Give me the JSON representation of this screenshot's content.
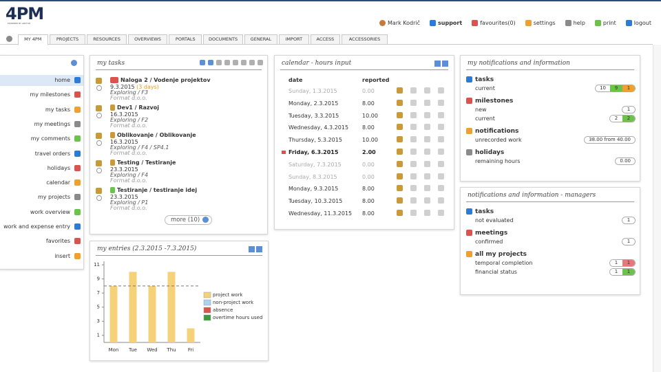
{
  "header": {
    "logo": "4PM",
    "logo_tagline": "POWERED BY ARCTUR",
    "user": "Mark Kodrič",
    "links": [
      "support",
      "favourites(0)",
      "settings",
      "help",
      "print",
      "logout"
    ]
  },
  "tabs": [
    "MY 4PM",
    "PROJECTS",
    "RESOURCES",
    "OVERVIEWS",
    "PORTALS",
    "DOCUMENTS",
    "GENERAL",
    "IMPORT",
    "ACCESS",
    "ACCESSORIES"
  ],
  "active_tab": 0,
  "sidebar": {
    "items": [
      "home",
      "my milestones",
      "my tasks",
      "my meetings",
      "my comments",
      "travel orders",
      "holidays",
      "calendar",
      "my projects",
      "work overview",
      "work and expense entry",
      "favorites",
      "insert"
    ],
    "active": 0
  },
  "my_tasks": {
    "title": "my tasks",
    "items": [
      {
        "title": "Naloga 2 / Vodenje projektov",
        "date": "9.3.2015",
        "late": "(3 days)",
        "path": "Exploring / F3",
        "company": "Format d.o.o."
      },
      {
        "title": "Dev1 / Razvoj",
        "date": "16.3.2015",
        "path": "Exploring / F2",
        "company": "Format d.o.o."
      },
      {
        "title": "Oblikovanje / Oblikovanje",
        "date": "16.3.2015",
        "path": "Exploring / F4 / SP4.1",
        "company": "Format d.o.o."
      },
      {
        "title": "Testing / Testiranje",
        "date": "23.3.2015",
        "path": "Exploring / F4",
        "company": "Format d.o.o."
      },
      {
        "title": "Testiranje / testiranje idej",
        "date": "23.3.2015",
        "path": "Exploring / P1",
        "company": "Format d.o.o."
      }
    ],
    "more": "more (10)"
  },
  "calendar": {
    "title": "calendar - hours input",
    "columns": [
      "date",
      "reported"
    ],
    "rows": [
      {
        "date": "Sunday, 1.3.2015",
        "reported": "0.00",
        "weekend": true
      },
      {
        "date": "Monday, 2.3.2015",
        "reported": "8.00"
      },
      {
        "date": "Tuesday, 3.3.2015",
        "reported": "10.00"
      },
      {
        "date": "Wednesday, 4.3.2015",
        "reported": "8.00"
      },
      {
        "date": "Thursday, 5.3.2015",
        "reported": "10.00"
      },
      {
        "date": "Friday, 6.3.2015",
        "reported": "2.00",
        "today": true
      },
      {
        "date": "Saturday, 7.3.2015",
        "reported": "0.00",
        "weekend": true
      },
      {
        "date": "Sunday, 8.3.2015",
        "reported": "0.00",
        "weekend": true
      },
      {
        "date": "Monday, 9.3.2015",
        "reported": "8.00"
      },
      {
        "date": "Tuesday, 10.3.2015",
        "reported": "8.00"
      },
      {
        "date": "Wednesday, 11.3.2015",
        "reported": "8.00"
      }
    ]
  },
  "my_entries": {
    "title": "my entries",
    "period": "(2.3.2015 -7.3.2015)",
    "chart_data": {
      "type": "bar",
      "stacked": true,
      "categories": [
        "Mon",
        "Tue",
        "Wed",
        "Thu",
        "Fri"
      ],
      "series": [
        {
          "name": "project work",
          "color": "#f5d27a",
          "values": [
            8,
            10,
            8,
            10,
            2
          ]
        },
        {
          "name": "non-project work",
          "color": "#a9d3f0",
          "values": [
            0,
            0,
            0,
            0,
            0
          ]
        },
        {
          "name": "absence",
          "color": "#d9534f",
          "values": [
            0,
            0,
            0,
            0,
            0
          ]
        },
        {
          "name": "overtime hours used",
          "color": "#3c9a3c",
          "values": [
            0,
            0,
            0,
            0,
            0
          ]
        }
      ],
      "ylim": [
        0,
        11.5
      ],
      "yticks": [
        1,
        3,
        5,
        7,
        9,
        11
      ],
      "reference_line": 8
    }
  },
  "notifications": {
    "title": "my notifications and information",
    "sections": [
      {
        "title": "tasks",
        "rows": [
          {
            "label": "current",
            "badges": [
              {
                "value": 10,
                "color": "#ffffff"
              },
              {
                "value": 9,
                "color": "#6cc24a"
              },
              {
                "value": 1,
                "color": "#f0a030"
              }
            ]
          }
        ]
      },
      {
        "title": "milestones",
        "rows": [
          {
            "label": "new",
            "badges": [
              {
                "value": 1,
                "color": "#ffffff"
              }
            ]
          },
          {
            "label": "current",
            "badges": [
              {
                "value": 2,
                "color": "#ffffff"
              },
              {
                "value": 2,
                "color": "#6cc24a"
              }
            ]
          }
        ]
      },
      {
        "title": "notifications",
        "rows": [
          {
            "label": "unrecorded work",
            "badges": [
              {
                "value": "38.00 from 40.00",
                "color": "#ffffff"
              }
            ]
          }
        ]
      },
      {
        "title": "holidays",
        "rows": [
          {
            "label": "remaining hours",
            "badges": [
              {
                "value": "0.00",
                "color": "#ffffff"
              }
            ]
          }
        ]
      }
    ]
  },
  "managers": {
    "title": "notifications and information - managers",
    "sections": [
      {
        "title": "tasks",
        "rows": [
          {
            "label": "not evaluated",
            "badges": [
              {
                "value": 1,
                "color": "#ffffff"
              }
            ]
          }
        ]
      },
      {
        "title": "meetings",
        "rows": [
          {
            "label": "confirmed",
            "badges": [
              {
                "value": 1,
                "color": "#ffffff"
              }
            ]
          }
        ]
      },
      {
        "title": "all my projects",
        "rows": [
          {
            "label": "temporal completion",
            "badges": [
              {
                "value": 1,
                "color": "#ffffff"
              },
              {
                "value": 1,
                "color": "#e87878"
              }
            ]
          },
          {
            "label": "financial status",
            "badges": [
              {
                "value": 1,
                "color": "#ffffff"
              },
              {
                "value": 1,
                "color": "#6cc24a"
              }
            ]
          }
        ]
      }
    ]
  }
}
